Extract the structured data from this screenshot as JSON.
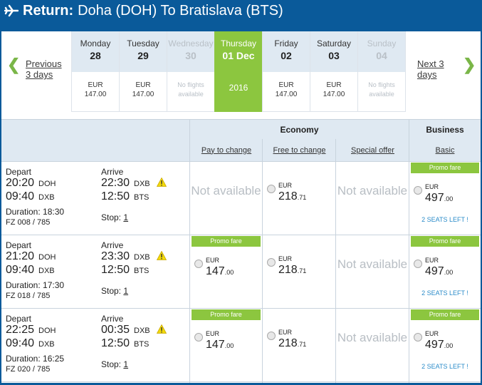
{
  "header": {
    "label": "Return:",
    "route": "Doha (DOH) To Bratislava (BTS)"
  },
  "nav": {
    "prev_label": "Previous 3 days",
    "next_label": "Next 3 days"
  },
  "dates": [
    {
      "day": "Monday",
      "date": "28",
      "currency": "EUR",
      "price": "147.00",
      "state": "available"
    },
    {
      "day": "Tuesday",
      "date": "29",
      "currency": "EUR",
      "price": "147.00",
      "state": "available"
    },
    {
      "day": "Wednesday",
      "date": "30",
      "note": "No flights available",
      "state": "none"
    },
    {
      "day": "Thursday",
      "date": "01 Dec",
      "year": "2016",
      "state": "selected"
    },
    {
      "day": "Friday",
      "date": "02",
      "currency": "EUR",
      "price": "147.00",
      "state": "available"
    },
    {
      "day": "Saturday",
      "date": "03",
      "currency": "EUR",
      "price": "147.00",
      "state": "available"
    },
    {
      "day": "Sunday",
      "date": "04",
      "note": "No flights available",
      "state": "none"
    }
  ],
  "table": {
    "economy_label": "Economy",
    "business_label": "Business",
    "fare_types": [
      "Pay to change",
      "Free to change",
      "Special offer",
      "Basic"
    ]
  },
  "common": {
    "depart": "Depart",
    "arrive": "Arrive",
    "stop_label": "Stop:",
    "not_available": "Not available",
    "promo": "Promo fare",
    "currency": "EUR"
  },
  "flights": [
    {
      "dep_time": "20:20",
      "dep_code": "DOH",
      "conn_time": "09:40",
      "conn_code": "DXB",
      "duration": "Duration: 18:30",
      "flight_no": "FZ 008 / 785",
      "arr_time": "22:30",
      "arr_code": "DXB",
      "arr2_time": "12:50",
      "arr2_code": "BTS",
      "stops": "1",
      "fares": [
        {
          "available": false
        },
        {
          "available": true,
          "promo": false,
          "int": "218",
          "dec": ".71"
        },
        {
          "available": false
        },
        {
          "available": true,
          "promo": true,
          "int": "497",
          "dec": ".00",
          "seats": "2 SEATS LEFT !"
        }
      ]
    },
    {
      "dep_time": "21:20",
      "dep_code": "DOH",
      "conn_time": "09:40",
      "conn_code": "DXB",
      "duration": "Duration: 17:30",
      "flight_no": "FZ 018 / 785",
      "arr_time": "23:30",
      "arr_code": "DXB",
      "arr2_time": "12:50",
      "arr2_code": "BTS",
      "stops": "1",
      "fares": [
        {
          "available": true,
          "promo": true,
          "int": "147",
          "dec": ".00"
        },
        {
          "available": true,
          "promo": false,
          "int": "218",
          "dec": ".71"
        },
        {
          "available": false
        },
        {
          "available": true,
          "promo": true,
          "int": "497",
          "dec": ".00",
          "seats": "2 SEATS LEFT !"
        }
      ]
    },
    {
      "dep_time": "22:25",
      "dep_code": "DOH",
      "conn_time": "09:40",
      "conn_code": "DXB",
      "duration": "Duration: 16:25",
      "flight_no": "FZ 020 / 785",
      "arr_time": "00:35",
      "arr_code": "DXB",
      "arr2_time": "12:50",
      "arr2_code": "BTS",
      "stops": "1",
      "fares": [
        {
          "available": true,
          "promo": true,
          "int": "147",
          "dec": ".00"
        },
        {
          "available": true,
          "promo": false,
          "int": "218",
          "dec": ".71"
        },
        {
          "available": false
        },
        {
          "available": true,
          "promo": true,
          "int": "497",
          "dec": ".00",
          "seats": "2 SEATS LEFT !"
        }
      ]
    }
  ],
  "colors": {
    "brand": "#0a5a9a",
    "accent": "#8cc63f",
    "header_bg": "#dfe9f2",
    "link": "#2a8bc9"
  }
}
